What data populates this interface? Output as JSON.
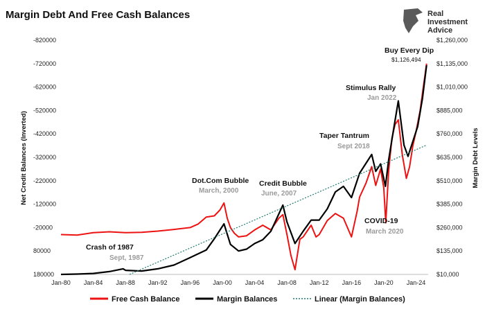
{
  "chart_data": {
    "type": "line",
    "title": "Margin Debt And Free Cash Balances",
    "ylabel_left": "Net Credit Balances (Inverted)",
    "ylabel_right": "Margin Debt Levels",
    "left_axis": {
      "inverted": true,
      "range": [
        -820000,
        180000
      ],
      "ticks": [
        "-820000",
        "-720000",
        "-620000",
        "-520000",
        "-420000",
        "-320000",
        "-220000",
        "-120000",
        "-20000",
        "80000",
        "180000"
      ]
    },
    "right_axis": {
      "range": [
        10000,
        1260000
      ],
      "ticks": [
        "$1,260,000",
        "$1,135,000",
        "$1,010,000",
        "$885,000",
        "$760,000",
        "$635,000",
        "$510,000",
        "$385,000",
        "$260,000",
        "$135,000",
        "$10,000"
      ]
    },
    "x_ticks": [
      "Jan-80",
      "Jan-84",
      "Jan-88",
      "Jan-92",
      "Jan-96",
      "Jan-00",
      "Jan-04",
      "Jan-08",
      "Jan-12",
      "Jan-16",
      "Jan-20",
      "Jan-24"
    ],
    "x_range": [
      1980.0,
      2025.5
    ],
    "grid": false,
    "legend_position": "bottom",
    "colors": {
      "free_cash": "#ee1111",
      "margin": "#000000",
      "trend": "#1f7a6e"
    },
    "series": [
      {
        "name": "Free Cash Balance",
        "axis": "left",
        "points": [
          [
            1980,
            10000
          ],
          [
            1982,
            12000
          ],
          [
            1984,
            2000
          ],
          [
            1986,
            -2000
          ],
          [
            1988,
            2000
          ],
          [
            1990,
            0
          ],
          [
            1992,
            -5000
          ],
          [
            1994,
            -12000
          ],
          [
            1996,
            -20000
          ],
          [
            1997,
            -35000
          ],
          [
            1998,
            -65000
          ],
          [
            1999,
            -70000
          ],
          [
            1999.7,
            -95000
          ],
          [
            2000.2,
            -125000
          ],
          [
            2000.6,
            -60000
          ],
          [
            2001,
            -20000
          ],
          [
            2001.5,
            5000
          ],
          [
            2002,
            20000
          ],
          [
            2003,
            15000
          ],
          [
            2004,
            -10000
          ],
          [
            2005,
            -30000
          ],
          [
            2006,
            -10000
          ],
          [
            2007,
            -60000
          ],
          [
            2007.5,
            -75000
          ],
          [
            2008,
            10000
          ],
          [
            2008.5,
            100000
          ],
          [
            2009,
            160000
          ],
          [
            2009.6,
            30000
          ],
          [
            2010,
            20000
          ],
          [
            2011,
            -30000
          ],
          [
            2011.6,
            20000
          ],
          [
            2012,
            10000
          ],
          [
            2013,
            -50000
          ],
          [
            2014,
            -80000
          ],
          [
            2015,
            -60000
          ],
          [
            2016,
            20000
          ],
          [
            2016.7,
            -90000
          ],
          [
            2017,
            -150000
          ],
          [
            2017.8,
            -210000
          ],
          [
            2018.5,
            -280000
          ],
          [
            2019,
            -200000
          ],
          [
            2019.6,
            -270000
          ],
          [
            2020,
            -190000
          ],
          [
            2020.25,
            -40000
          ],
          [
            2020.6,
            -260000
          ],
          [
            2021,
            -400000
          ],
          [
            2021.4,
            -460000
          ],
          [
            2021.8,
            -480000
          ],
          [
            2022.3,
            -330000
          ],
          [
            2022.8,
            -230000
          ],
          [
            2023.2,
            -280000
          ],
          [
            2023.6,
            -370000
          ],
          [
            2024,
            -430000
          ],
          [
            2024.5,
            -520000
          ],
          [
            2024.9,
            -620000
          ],
          [
            2025.3,
            -720000
          ]
        ]
      },
      {
        "name": "Margin Balances",
        "axis": "right",
        "points": [
          [
            1980,
            10000
          ],
          [
            1982,
            12000
          ],
          [
            1984,
            15000
          ],
          [
            1986,
            25000
          ],
          [
            1987.7,
            40000
          ],
          [
            1988,
            32000
          ],
          [
            1990,
            28000
          ],
          [
            1992,
            40000
          ],
          [
            1994,
            60000
          ],
          [
            1996,
            100000
          ],
          [
            1998,
            140000
          ],
          [
            1999,
            200000
          ],
          [
            2000.2,
            280000
          ],
          [
            2001,
            170000
          ],
          [
            2002,
            135000
          ],
          [
            2003,
            145000
          ],
          [
            2004,
            175000
          ],
          [
            2005,
            195000
          ],
          [
            2006,
            240000
          ],
          [
            2007.5,
            380000
          ],
          [
            2008,
            290000
          ],
          [
            2009,
            175000
          ],
          [
            2010,
            240000
          ],
          [
            2011,
            300000
          ],
          [
            2012,
            300000
          ],
          [
            2013,
            360000
          ],
          [
            2014,
            450000
          ],
          [
            2015,
            480000
          ],
          [
            2016,
            420000
          ],
          [
            2017,
            550000
          ],
          [
            2018.5,
            650000
          ],
          [
            2019,
            560000
          ],
          [
            2019.6,
            600000
          ],
          [
            2020.2,
            480000
          ],
          [
            2020.6,
            620000
          ],
          [
            2021.2,
            780000
          ],
          [
            2021.8,
            936000
          ],
          [
            2022.5,
            700000
          ],
          [
            2023,
            640000
          ],
          [
            2023.6,
            720000
          ],
          [
            2024.2,
            800000
          ],
          [
            2024.8,
            950000
          ],
          [
            2025.3,
            1126494
          ]
        ]
      },
      {
        "name": "Linear (Margin Balances)",
        "axis": "right",
        "points": [
          [
            1988.5,
            10000
          ],
          [
            2025.3,
            700000
          ]
        ]
      }
    ],
    "annotations": [
      {
        "id": "crash1987",
        "title": "Crash of 1987",
        "subtitle": "Sept, 1987"
      },
      {
        "id": "dotcom",
        "title": "Dot.Com Bubble",
        "subtitle": "March, 2000"
      },
      {
        "id": "credit",
        "title": "Credit Bubble",
        "subtitle": "June, 2007"
      },
      {
        "id": "taper",
        "title": "Taper Tantrum",
        "subtitle": "Sept 2018"
      },
      {
        "id": "stimulus",
        "title": "Stimulus Rally",
        "subtitle": "Jan 2022"
      },
      {
        "id": "covid",
        "title": "COVID-19",
        "subtitle": "March 2020"
      },
      {
        "id": "dip",
        "title": "Buy Every Dip",
        "subtitle": "$1,126,494"
      }
    ]
  },
  "branding": {
    "logo_line1": "Real",
    "logo_line2": "Investment",
    "logo_line3": "Advice"
  }
}
